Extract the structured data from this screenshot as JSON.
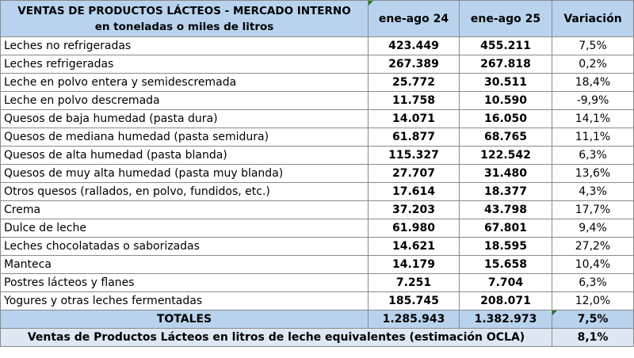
{
  "header": {
    "title_line1": "VENTAS DE PRODUCTOS LÁCTEOS - MERCADO INTERNO",
    "title_line2": "en toneladas o miles de litros",
    "col1": "ene-ago 24",
    "col2": "ene-ago 25",
    "col3": "Variación"
  },
  "rows": [
    {
      "name": "Leches no refrigeradas",
      "v24": "423.449",
      "v25": "455.211",
      "var": "7,5%"
    },
    {
      "name": "Leches refrigeradas",
      "v24": "267.389",
      "v25": "267.818",
      "var": "0,2%"
    },
    {
      "name": "Leche en polvo entera y semidescremada",
      "v24": "25.772",
      "v25": "30.511",
      "var": "18,4%"
    },
    {
      "name": "Leche en polvo descremada",
      "v24": "11.758",
      "v25": "10.590",
      "var": "-9,9%"
    },
    {
      "name": "Quesos de baja humedad (pasta dura)",
      "v24": "14.071",
      "v25": "16.050",
      "var": "14,1%"
    },
    {
      "name": "Quesos de mediana humedad (pasta semidura)",
      "v24": "61.877",
      "v25": "68.765",
      "var": "11,1%"
    },
    {
      "name": "Quesos de alta humedad (pasta blanda)",
      "v24": "115.327",
      "v25": "122.542",
      "var": "6,3%"
    },
    {
      "name": "Quesos de muy alta humedad (pasta muy blanda)",
      "v24": "27.707",
      "v25": "31.480",
      "var": "13,6%"
    },
    {
      "name": "Otros quesos (rallados, en polvo, fundidos, etc.)",
      "v24": "17.614",
      "v25": "18.377",
      "var": "4,3%"
    },
    {
      "name": "Crema",
      "v24": "37.203",
      "v25": "43.798",
      "var": "17,7%"
    },
    {
      "name": "Dulce de leche",
      "v24": "61.980",
      "v25": "67.801",
      "var": "9,4%"
    },
    {
      "name": "Leches chocolatadas o saborizadas",
      "v24": "14.621",
      "v25": "18.595",
      "var": "27,2%"
    },
    {
      "name": "Manteca",
      "v24": "14.179",
      "v25": "15.658",
      "var": "10,4%"
    },
    {
      "name": "Postres lácteos y flanes",
      "v24": "7.251",
      "v25": "7.704",
      "var": "6,3%"
    },
    {
      "name": "Yogures y otras leches fermentadas",
      "v24": "185.745",
      "v25": "208.071",
      "var": "12,0%"
    }
  ],
  "totals": {
    "label": "TOTALES",
    "v24": "1.285.943",
    "v25": "1.382.973",
    "var": "7,5%"
  },
  "ocla": {
    "label": "Ventas de Productos Lácteos en litros de leche equivalentes (estimación OCLA)",
    "var": "8,1%"
  },
  "colors": {
    "header_bg": "#b9d3ee",
    "ocla_bg": "#dde8f4",
    "border": "#8a8a8a",
    "marker": "#1f7a1f"
  }
}
